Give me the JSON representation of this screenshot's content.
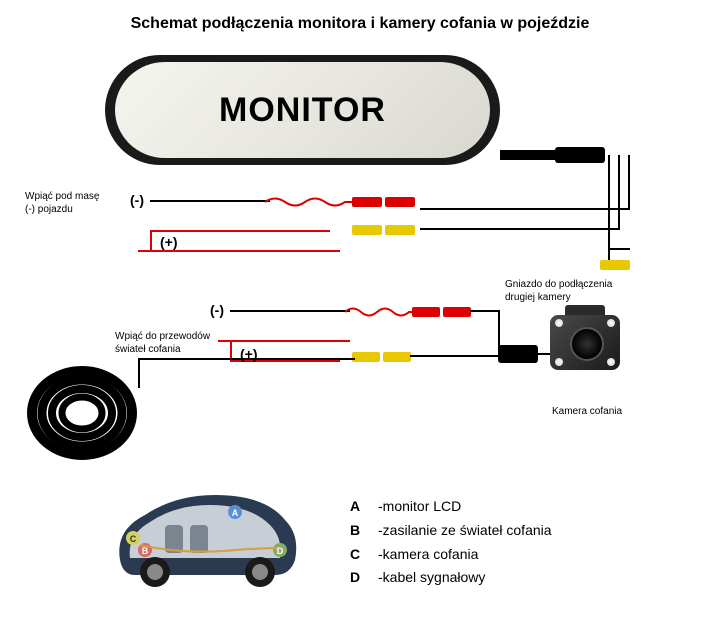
{
  "title": "Schemat podłączenia monitora i kamery cofania w pojeździe",
  "monitor_label": "MONITOR",
  "labels": {
    "mass": "Wpiąć pod masę\n(-) pojazdu",
    "second_cam": "Gniazdo do podłączenia\ndrugiej kamery",
    "reverse_light": "Wpiąć do przewodów\nświateł cofania",
    "camera": "Kamera cofania"
  },
  "polarity": {
    "minus1": "(-)",
    "plus1": "(+)",
    "minus2": "(-)",
    "plus2": "(+)"
  },
  "legend": [
    {
      "key": "A",
      "text": "monitor LCD"
    },
    {
      "key": "B",
      "text": "zasilanie ze świateł cofania"
    },
    {
      "key": "C",
      "text": "kamera cofania"
    },
    {
      "key": "D",
      "text": "kabel sygnałowy"
    }
  ],
  "colors": {
    "red": "#d00000",
    "yellow": "#e8c800",
    "black": "#000000",
    "car_body": "#2a3a50",
    "car_metal": "#9aa5b0"
  }
}
